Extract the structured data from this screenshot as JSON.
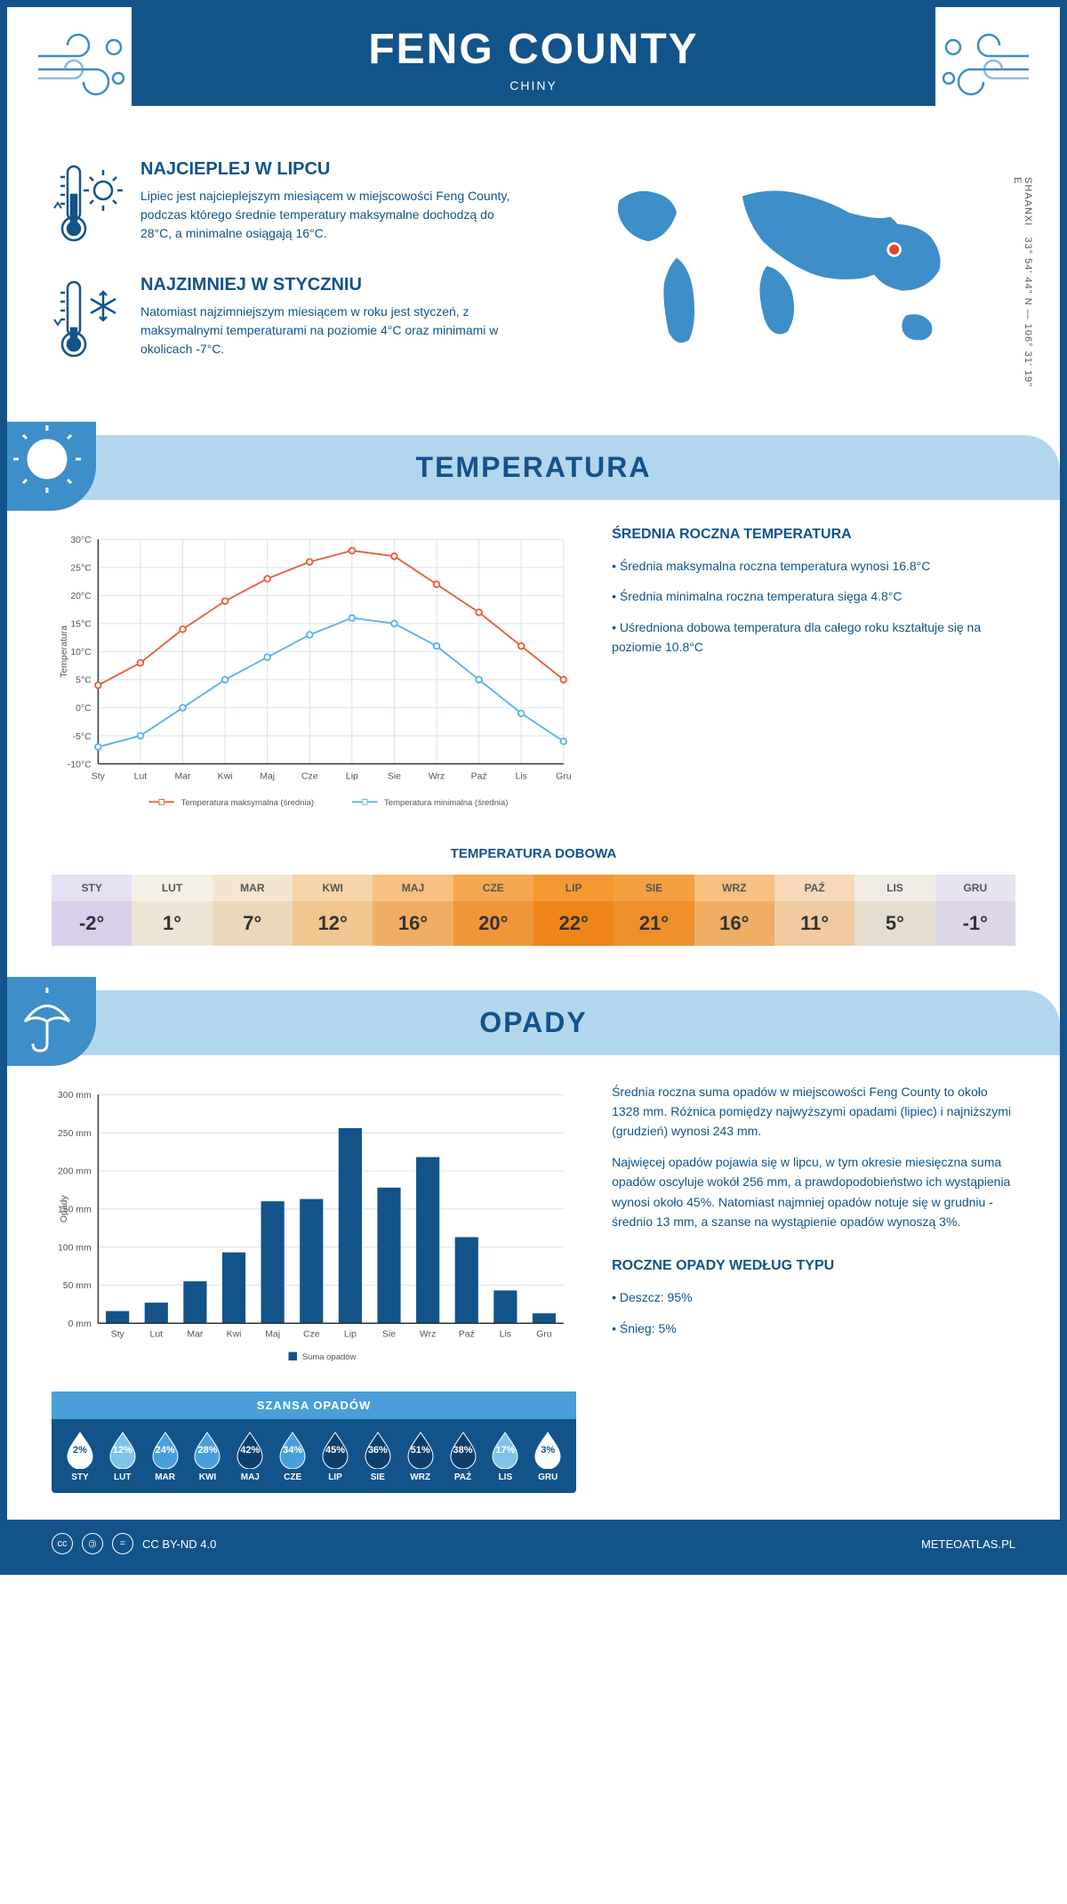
{
  "header": {
    "title": "FENG COUNTY",
    "subtitle": "CHINY"
  },
  "coords": "33° 54' 44\" N — 106° 31' 19\" E",
  "region": "SHAANXI",
  "facts": {
    "hot": {
      "title": "NAJCIEPLEJ W LIPCU",
      "text": "Lipiec jest najcieplejszym miesiącem w miejscowości Feng County, podczas którego średnie temperatury maksymalne dochodzą do 28°C, a minimalne osiągają 16°C."
    },
    "cold": {
      "title": "NAJZIMNIEJ W STYCZNIU",
      "text": "Natomiast najzimniejszym miesiącem w roku jest styczeń, z maksymalnymi temperaturami na poziomie 4°C oraz minimami w okolicach -7°C."
    }
  },
  "temperature": {
    "section_title": "TEMPERATURA",
    "chart": {
      "type": "line",
      "months": [
        "Sty",
        "Lut",
        "Mar",
        "Kwi",
        "Maj",
        "Cze",
        "Lip",
        "Sie",
        "Wrz",
        "Paź",
        "Lis",
        "Gru"
      ],
      "max_series": {
        "label": "Temperatura maksymalna (średnia)",
        "color": "#e8613c",
        "values": [
          4,
          8,
          14,
          19,
          23,
          26,
          28,
          27,
          22,
          17,
          11,
          5
        ]
      },
      "min_series": {
        "label": "Temperatura minimalna (średnia)",
        "color": "#5fb3e8",
        "values": [
          -7,
          -5,
          0,
          5,
          9,
          13,
          16,
          15,
          11,
          5,
          -1,
          -6
        ]
      },
      "ylabel": "Temperatura",
      "ylim": [
        -10,
        30
      ],
      "ytick_step": 5,
      "grid_color": "#d0e4f2",
      "bg": "#ffffff",
      "axis_color": "#333",
      "font_size": 11
    },
    "summary_title": "ŚREDNIA ROCZNA TEMPERATURA",
    "summary": [
      "• Średnia maksymalna roczna temperatura wynosi 16.8°C",
      "• Średnia minimalna roczna temperatura sięga 4.8°C",
      "• Uśredniona dobowa temperatura dla całego roku kształtuje się na poziomie 10.8°C"
    ],
    "daily_title": "TEMPERATURA DOBOWA",
    "daily": {
      "months": [
        "STY",
        "LUT",
        "MAR",
        "KWI",
        "MAJ",
        "CZE",
        "LIP",
        "SIE",
        "WRZ",
        "PAŹ",
        "LIS",
        "GRU"
      ],
      "values": [
        "-2°",
        "1°",
        "7°",
        "12°",
        "16°",
        "20°",
        "22°",
        "21°",
        "16°",
        "11°",
        "5°",
        "-1°"
      ],
      "head_colors": [
        "#e5e0f2",
        "#f5f0e5",
        "#f5e5d0",
        "#f7d3a8",
        "#f7c080",
        "#f5a850",
        "#f59830",
        "#f5a040",
        "#f7c080",
        "#f7d8b8",
        "#f0ece5",
        "#e8e3f0"
      ],
      "val_colors": [
        "#d8d0ea",
        "#ede5d5",
        "#edd8bc",
        "#f0c590",
        "#f0ae64",
        "#ef9638",
        "#ef8518",
        "#ef8f28",
        "#f0ae64",
        "#f0cba0",
        "#e5ded0",
        "#ddd5e8"
      ]
    }
  },
  "precipitation": {
    "section_title": "OPADY",
    "chart": {
      "type": "bar",
      "months": [
        "Sty",
        "Lut",
        "Mar",
        "Kwi",
        "Maj",
        "Cze",
        "Lip",
        "Sie",
        "Wrz",
        "Paź",
        "Lis",
        "Gru"
      ],
      "values": [
        16,
        27,
        55,
        93,
        160,
        163,
        256,
        178,
        218,
        113,
        43,
        13
      ],
      "bar_color": "#12538a",
      "ylabel": "Opady",
      "ylim": [
        0,
        300
      ],
      "ytick_step": 50,
      "grid_color": "#d0e4f2",
      "legend": "Suma opadów",
      "font_size": 11
    },
    "text": [
      "Średnia roczna suma opadów w miejscowości Feng County to około 1328 mm. Różnica pomiędzy najwyższymi opadami (lipiec) i najniższymi (grudzień) wynosi 243 mm.",
      "Najwięcej opadów pojawia się w lipcu, w tym okresie miesięczna suma opadów oscyluje wokół 256 mm, a prawdopodobieństwo ich wystąpienia wynosi około 45%. Natomiast najmniej opadów notuje się w grudniu - średnio 13 mm, a szanse na wystąpienie opadów wynoszą 3%."
    ],
    "chance_title": "SZANSA OPADÓW",
    "chance": {
      "months": [
        "STY",
        "LUT",
        "MAR",
        "KWI",
        "MAJ",
        "CZE",
        "LIP",
        "SIE",
        "WRZ",
        "PAŹ",
        "LIS",
        "GRU"
      ],
      "values": [
        "2%",
        "12%",
        "24%",
        "28%",
        "42%",
        "34%",
        "45%",
        "36%",
        "51%",
        "38%",
        "17%",
        "3%"
      ],
      "fill_levels": [
        2,
        12,
        24,
        28,
        42,
        34,
        45,
        36,
        51,
        38,
        17,
        3
      ]
    },
    "type_title": "ROCZNE OPADY WEDŁUG TYPU",
    "types": [
      "• Deszcz: 95%",
      "• Śnieg: 5%"
    ]
  },
  "footer": {
    "license": "CC BY-ND 4.0",
    "site": "METEOATLAS.PL"
  },
  "colors": {
    "primary": "#12538a",
    "lightblue": "#b3d6ef",
    "midblue": "#3d8ec9",
    "orange": "#e8613c",
    "skyblue": "#5fb3e8"
  }
}
